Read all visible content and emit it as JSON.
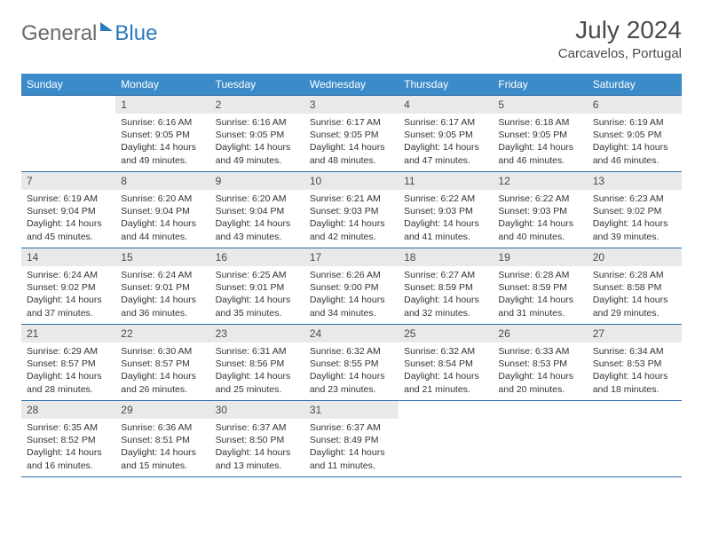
{
  "brand": {
    "part1": "General",
    "part2": "Blue"
  },
  "title": "July 2024",
  "location": "Carcavelos, Portugal",
  "colors": {
    "header_bg": "#3b8bc9",
    "header_text": "#ffffff",
    "daynum_bg": "#e9e9e9",
    "rule": "#2a6aa8",
    "brand_gray": "#6a6a6a",
    "brand_blue": "#2a78bd",
    "text": "#333333"
  },
  "weekdays": [
    "Sunday",
    "Monday",
    "Tuesday",
    "Wednesday",
    "Thursday",
    "Friday",
    "Saturday"
  ],
  "weeks": [
    [
      null,
      {
        "n": "1",
        "sr": "6:16 AM",
        "ss": "9:05 PM",
        "dl": "14 hours and 49 minutes."
      },
      {
        "n": "2",
        "sr": "6:16 AM",
        "ss": "9:05 PM",
        "dl": "14 hours and 49 minutes."
      },
      {
        "n": "3",
        "sr": "6:17 AM",
        "ss": "9:05 PM",
        "dl": "14 hours and 48 minutes."
      },
      {
        "n": "4",
        "sr": "6:17 AM",
        "ss": "9:05 PM",
        "dl": "14 hours and 47 minutes."
      },
      {
        "n": "5",
        "sr": "6:18 AM",
        "ss": "9:05 PM",
        "dl": "14 hours and 46 minutes."
      },
      {
        "n": "6",
        "sr": "6:19 AM",
        "ss": "9:05 PM",
        "dl": "14 hours and 46 minutes."
      }
    ],
    [
      {
        "n": "7",
        "sr": "6:19 AM",
        "ss": "9:04 PM",
        "dl": "14 hours and 45 minutes."
      },
      {
        "n": "8",
        "sr": "6:20 AM",
        "ss": "9:04 PM",
        "dl": "14 hours and 44 minutes."
      },
      {
        "n": "9",
        "sr": "6:20 AM",
        "ss": "9:04 PM",
        "dl": "14 hours and 43 minutes."
      },
      {
        "n": "10",
        "sr": "6:21 AM",
        "ss": "9:03 PM",
        "dl": "14 hours and 42 minutes."
      },
      {
        "n": "11",
        "sr": "6:22 AM",
        "ss": "9:03 PM",
        "dl": "14 hours and 41 minutes."
      },
      {
        "n": "12",
        "sr": "6:22 AM",
        "ss": "9:03 PM",
        "dl": "14 hours and 40 minutes."
      },
      {
        "n": "13",
        "sr": "6:23 AM",
        "ss": "9:02 PM",
        "dl": "14 hours and 39 minutes."
      }
    ],
    [
      {
        "n": "14",
        "sr": "6:24 AM",
        "ss": "9:02 PM",
        "dl": "14 hours and 37 minutes."
      },
      {
        "n": "15",
        "sr": "6:24 AM",
        "ss": "9:01 PM",
        "dl": "14 hours and 36 minutes."
      },
      {
        "n": "16",
        "sr": "6:25 AM",
        "ss": "9:01 PM",
        "dl": "14 hours and 35 minutes."
      },
      {
        "n": "17",
        "sr": "6:26 AM",
        "ss": "9:00 PM",
        "dl": "14 hours and 34 minutes."
      },
      {
        "n": "18",
        "sr": "6:27 AM",
        "ss": "8:59 PM",
        "dl": "14 hours and 32 minutes."
      },
      {
        "n": "19",
        "sr": "6:28 AM",
        "ss": "8:59 PM",
        "dl": "14 hours and 31 minutes."
      },
      {
        "n": "20",
        "sr": "6:28 AM",
        "ss": "8:58 PM",
        "dl": "14 hours and 29 minutes."
      }
    ],
    [
      {
        "n": "21",
        "sr": "6:29 AM",
        "ss": "8:57 PM",
        "dl": "14 hours and 28 minutes."
      },
      {
        "n": "22",
        "sr": "6:30 AM",
        "ss": "8:57 PM",
        "dl": "14 hours and 26 minutes."
      },
      {
        "n": "23",
        "sr": "6:31 AM",
        "ss": "8:56 PM",
        "dl": "14 hours and 25 minutes."
      },
      {
        "n": "24",
        "sr": "6:32 AM",
        "ss": "8:55 PM",
        "dl": "14 hours and 23 minutes."
      },
      {
        "n": "25",
        "sr": "6:32 AM",
        "ss": "8:54 PM",
        "dl": "14 hours and 21 minutes."
      },
      {
        "n": "26",
        "sr": "6:33 AM",
        "ss": "8:53 PM",
        "dl": "14 hours and 20 minutes."
      },
      {
        "n": "27",
        "sr": "6:34 AM",
        "ss": "8:53 PM",
        "dl": "14 hours and 18 minutes."
      }
    ],
    [
      {
        "n": "28",
        "sr": "6:35 AM",
        "ss": "8:52 PM",
        "dl": "14 hours and 16 minutes."
      },
      {
        "n": "29",
        "sr": "6:36 AM",
        "ss": "8:51 PM",
        "dl": "14 hours and 15 minutes."
      },
      {
        "n": "30",
        "sr": "6:37 AM",
        "ss": "8:50 PM",
        "dl": "14 hours and 13 minutes."
      },
      {
        "n": "31",
        "sr": "6:37 AM",
        "ss": "8:49 PM",
        "dl": "14 hours and 11 minutes."
      },
      null,
      null,
      null
    ]
  ],
  "labels": {
    "sunrise": "Sunrise:",
    "sunset": "Sunset:",
    "daylight": "Daylight:"
  }
}
